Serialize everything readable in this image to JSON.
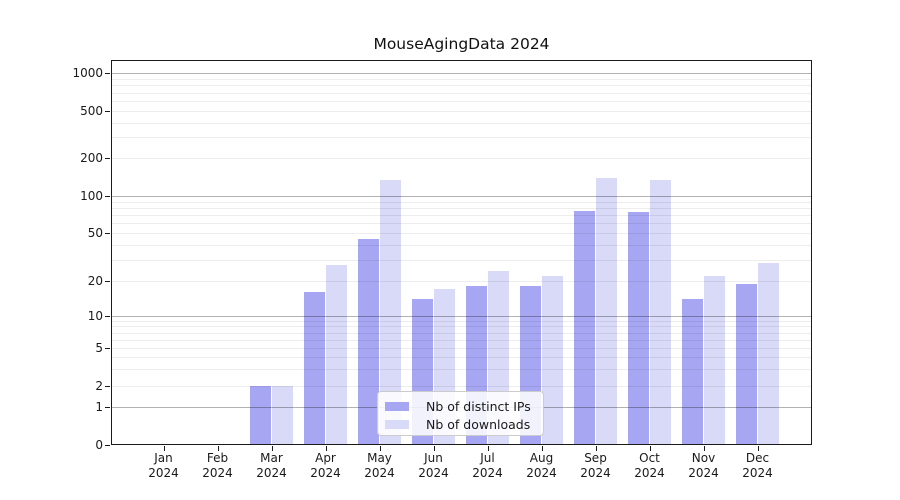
{
  "chart_data": {
    "type": "bar",
    "title": "MouseAgingData 2024",
    "categories": [
      "Jan 2024",
      "Feb 2024",
      "Mar 2024",
      "Apr 2024",
      "May 2024",
      "Jun 2024",
      "Jul 2024",
      "Aug 2024",
      "Sep 2024",
      "Oct 2024",
      "Nov 2024",
      "Dec 2024"
    ],
    "x_months": [
      "Jan",
      "Feb",
      "Mar",
      "Apr",
      "May",
      "Jun",
      "Jul",
      "Aug",
      "Sep",
      "Oct",
      "Nov",
      "Dec"
    ],
    "x_year": "2024",
    "series": [
      {
        "name": "Nb of distinct IPs",
        "color": "#a6a6f2",
        "values": [
          0,
          0,
          2,
          16,
          45,
          14,
          18,
          18,
          75,
          74,
          14,
          19
        ]
      },
      {
        "name": "Nb of downloads",
        "color": "#d9d9f8",
        "values": [
          0,
          0,
          2,
          27,
          135,
          17,
          24,
          22,
          140,
          135,
          22,
          28
        ]
      }
    ],
    "yscale": "symlog",
    "ylim": [
      0,
      1300
    ],
    "yticks": [
      0,
      1,
      2,
      5,
      10,
      20,
      50,
      100,
      200,
      500,
      1000
    ],
    "ytick_labels": [
      "0",
      "1",
      "2",
      "5",
      "10",
      "20",
      "50",
      "100",
      "200",
      "500",
      "1000"
    ],
    "grid": true,
    "legend_position": "lower center",
    "xlabel": "",
    "ylabel": ""
  }
}
